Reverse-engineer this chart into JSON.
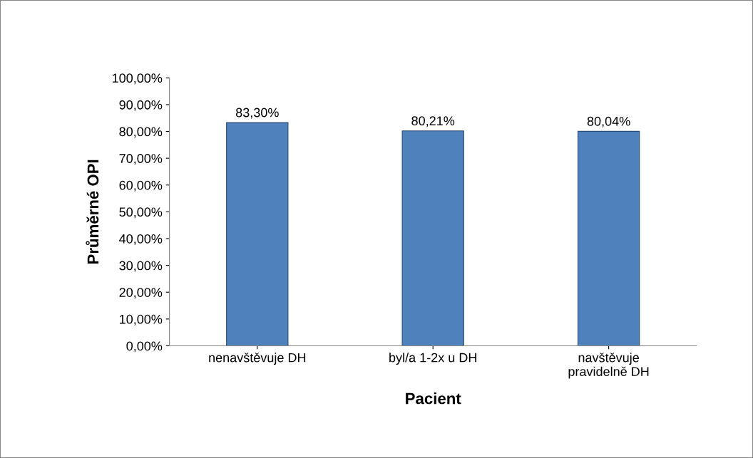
{
  "chart_data": {
    "type": "bar",
    "categories": [
      "nenavštěvuje DH",
      "byl/a 1-2x u DH",
      "navštěvuje\npravidelně DH"
    ],
    "values": [
      83.3,
      80.21,
      80.04
    ],
    "value_labels": [
      "83,30%",
      "80,21%",
      "80,04%"
    ],
    "color": "#4f81bd",
    "xlabel": "Pacient",
    "ylabel": "Průměrné OPI",
    "ylim": [
      0,
      100
    ],
    "yticks": [
      {
        "value": 0,
        "label": "0,00%"
      },
      {
        "value": 10,
        "label": "10,00%"
      },
      {
        "value": 20,
        "label": "20,00%"
      },
      {
        "value": 30,
        "label": "30,00%"
      },
      {
        "value": 40,
        "label": "40,00%"
      },
      {
        "value": 50,
        "label": "50,00%"
      },
      {
        "value": 60,
        "label": "60,00%"
      },
      {
        "value": 70,
        "label": "70,00%"
      },
      {
        "value": 80,
        "label": "80,00%"
      },
      {
        "value": 90,
        "label": "90,00%"
      },
      {
        "value": 100,
        "label": "100,00%"
      }
    ]
  }
}
